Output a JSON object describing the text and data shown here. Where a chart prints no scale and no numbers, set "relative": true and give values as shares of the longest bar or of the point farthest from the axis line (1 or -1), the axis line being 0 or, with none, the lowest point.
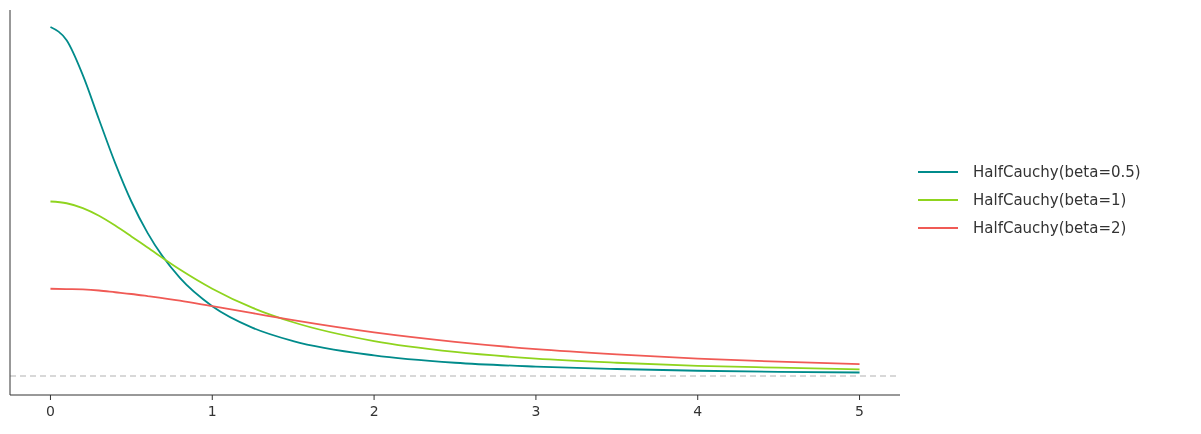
{
  "chart_data": {
    "type": "line",
    "relative": true,
    "x": [
      0,
      0.1,
      0.2,
      0.3,
      0.4,
      0.5,
      0.6,
      0.8,
      1,
      1.25,
      1.5,
      2,
      2.5,
      3,
      3.5,
      4,
      4.5,
      5
    ],
    "xlim": [
      -0.25,
      5.25
    ],
    "xticks": [
      0,
      1,
      2,
      3,
      4,
      5
    ],
    "grid": false,
    "legend": "right",
    "tick_labels": "x",
    "ref_lines": [
      {
        "axis": "y",
        "value": 0,
        "color": "#cccccc",
        "line_style": "dashed"
      }
    ],
    "series": [
      {
        "name": "HalfCauchy(beta=0.5)",
        "color": "#008b8b",
        "values": [
          1,
          0.962,
          0.862,
          0.735,
          0.61,
          0.5,
          0.41,
          0.281,
          0.2,
          0.138,
          0.1,
          0.059,
          0.038,
          0.027,
          0.02,
          0.015,
          0.012,
          0.01
        ]
      },
      {
        "name": "HalfCauchy(beta=1)",
        "color": "#8fd41e",
        "values": [
          0.5,
          0.495,
          0.481,
          0.459,
          0.431,
          0.4,
          0.368,
          0.305,
          0.25,
          0.195,
          0.154,
          0.1,
          0.069,
          0.05,
          0.038,
          0.029,
          0.024,
          0.019
        ]
      },
      {
        "name": "HalfCauchy(beta=2)",
        "color": "#f05a55",
        "values": [
          0.25,
          0.249,
          0.248,
          0.245,
          0.24,
          0.235,
          0.229,
          0.216,
          0.2,
          0.18,
          0.16,
          0.125,
          0.098,
          0.077,
          0.062,
          0.05,
          0.041,
          0.034
        ]
      }
    ]
  }
}
